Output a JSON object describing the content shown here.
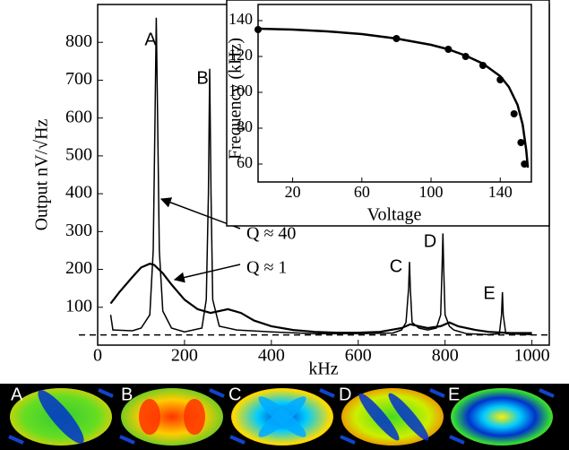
{
  "chart_data": [
    {
      "type": "line",
      "x_label": "kHz",
      "y_label": "Output nV/√Hz",
      "xlim": [
        0,
        1040
      ],
      "ylim": [
        0,
        900
      ],
      "xticks": [
        0,
        200,
        400,
        600,
        800,
        1000
      ],
      "yticks": [
        100,
        200,
        300,
        400,
        500,
        600,
        700,
        800
      ],
      "series": [
        {
          "color": "#000000",
          "x": [
            30,
            35,
            80,
            100,
            120,
            128,
            132,
            135,
            138,
            142,
            150,
            170,
            200,
            240,
            250,
            255,
            258,
            261,
            265,
            280,
            320,
            400,
            500,
            600,
            680,
            700,
            710,
            716,
            718,
            720,
            724,
            740,
            760,
            780,
            790,
            793,
            795,
            797,
            800,
            810,
            820,
            850,
            900,
            925,
            930,
            932,
            934,
            940,
            1000
          ],
          "values": [
            80,
            40,
            38,
            45,
            80,
            250,
            600,
            865,
            600,
            250,
            90,
            45,
            35,
            45,
            120,
            400,
            730,
            400,
            120,
            50,
            40,
            35,
            30,
            30,
            32,
            40,
            60,
            150,
            220,
            150,
            60,
            45,
            40,
            45,
            80,
            200,
            295,
            200,
            80,
            50,
            40,
            30,
            28,
            30,
            80,
            140,
            80,
            30,
            28
          ]
        },
        {
          "color": "#000000",
          "x": [
            30,
            50,
            80,
            100,
            120,
            130,
            150,
            170,
            200,
            230,
            260,
            300,
            330,
            360,
            400,
            450,
            500,
            550,
            600,
            650,
            700,
            720,
            740,
            760,
            790,
            810,
            830,
            870,
            900,
            950,
            1000
          ],
          "values": [
            110,
            140,
            180,
            205,
            215,
            212,
            190,
            160,
            120,
            95,
            85,
            95,
            85,
            65,
            50,
            40,
            35,
            33,
            33,
            35,
            45,
            55,
            50,
            45,
            50,
            60,
            50,
            40,
            35,
            32,
            32
          ]
        }
      ],
      "reference_line": 27,
      "peak_labels": [
        "A",
        "B",
        "C",
        "D",
        "E"
      ],
      "annotations": [
        "Q ≈ 40",
        "Q ≈ 1"
      ]
    },
    {
      "type": "scatter",
      "x_label": "Voltage",
      "y_label": "Frequency (kHz)",
      "xlim": [
        0,
        158
      ],
      "ylim": [
        50,
        149
      ],
      "xticks": [
        20,
        60,
        100,
        140
      ],
      "yticks": [
        60,
        80,
        100,
        120,
        140
      ],
      "series": [
        {
          "type": "scatter",
          "color": "#000000",
          "x": [
            0,
            80,
            110,
            120,
            130,
            140,
            148,
            152,
            154
          ],
          "values": [
            135,
            130,
            124,
            120,
            115,
            107,
            88,
            72,
            60
          ]
        },
        {
          "type": "line",
          "color": "#000000",
          "x": [
            0,
            20,
            40,
            60,
            80,
            100,
            110,
            120,
            130,
            140,
            145,
            150,
            153,
            155,
            156
          ],
          "values": [
            135.5,
            135,
            134,
            132.5,
            130,
            126.5,
            124,
            120.5,
            116,
            109,
            103,
            93,
            82,
            68,
            58
          ]
        }
      ]
    }
  ],
  "modes": {
    "labels": [
      "A",
      "B",
      "C",
      "D",
      "E"
    ]
  }
}
